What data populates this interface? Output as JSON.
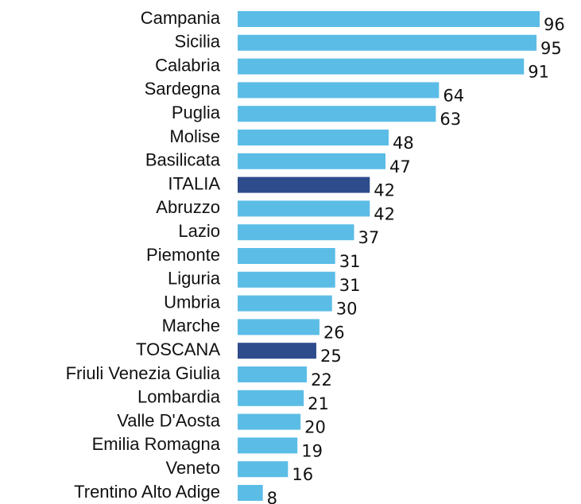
{
  "chart_data": {
    "type": "bar",
    "orientation": "horizontal",
    "categories": [
      "Campania",
      "Sicilia",
      "Calabria",
      "Sardegna",
      "Puglia",
      "Molise",
      "Basilicata",
      "ITALIA",
      "Abruzzo",
      "Lazio",
      "Piemonte",
      "Liguria",
      "Umbria",
      "Marche",
      "TOSCANA",
      "Friuli Venezia Giulia",
      "Lombardia",
      "Valle D'Aosta",
      "Emilia Romagna",
      "Veneto",
      "Trentino Alto Adige"
    ],
    "values": [
      96,
      95,
      91,
      64,
      63,
      48,
      47,
      42,
      42,
      37,
      31,
      31,
      30,
      26,
      25,
      22,
      21,
      20,
      19,
      16,
      8
    ],
    "colors": [
      "#5bbde6",
      "#5bbde6",
      "#5bbde6",
      "#5bbde6",
      "#5bbde6",
      "#5bbde6",
      "#5bbde6",
      "#2e4b8c",
      "#5bbde6",
      "#5bbde6",
      "#5bbde6",
      "#5bbde6",
      "#5bbde6",
      "#5bbde6",
      "#2e4b8c",
      "#5bbde6",
      "#5bbde6",
      "#5bbde6",
      "#5bbde6",
      "#5bbde6",
      "#5bbde6"
    ]
  }
}
